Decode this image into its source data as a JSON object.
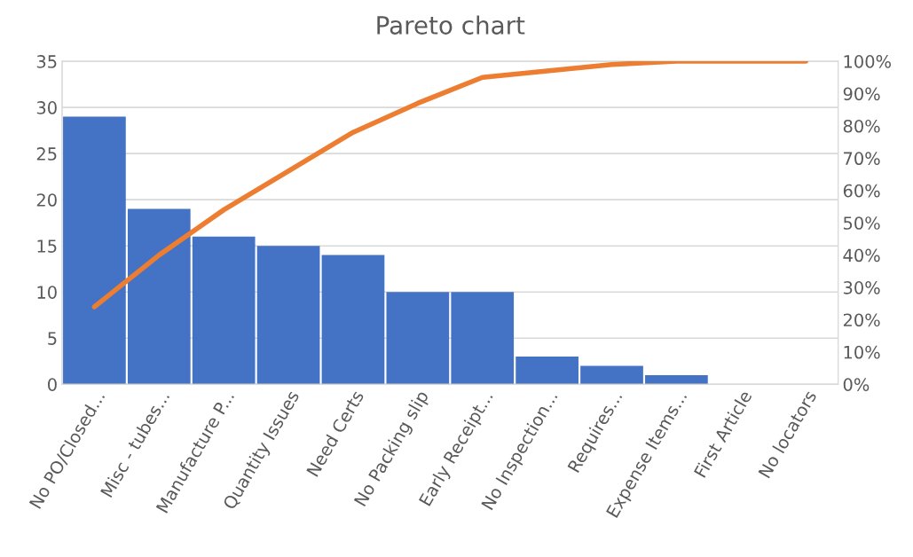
{
  "chart_data": {
    "type": "bar",
    "title": "Pareto chart",
    "categories": [
      "No PO/Closed...",
      "Misc - tubes...",
      "Manufacture P...",
      "Quantity Issues",
      "Need Certs",
      "No Packing slip",
      "Early Receipt...",
      "No Inspection...",
      "Requires...",
      "Expense Items...",
      "First Article",
      "No locators"
    ],
    "series": [
      {
        "color": "#4472c4",
        "values": [
          29,
          19,
          16,
          15,
          14,
          10,
          10,
          3,
          2,
          1,
          0,
          0
        ]
      },
      {
        "type": "line",
        "axis": "y2",
        "color": "#ed7d31",
        "values": [
          24,
          40,
          54,
          66,
          78,
          87,
          95,
          97,
          99,
          100,
          100,
          100
        ]
      }
    ],
    "ylim": [
      0,
      35
    ],
    "yticks": [
      0,
      5,
      10,
      15,
      20,
      25,
      30,
      35
    ],
    "y2lim": [
      0,
      100
    ],
    "y2ticks": [
      {
        "value": 0,
        "label": "0%"
      },
      {
        "value": 10,
        "label": "10%"
      },
      {
        "value": 20,
        "label": "20%"
      },
      {
        "value": 30,
        "label": "30%"
      },
      {
        "value": 40,
        "label": "40%"
      },
      {
        "value": 50,
        "label": "50%"
      },
      {
        "value": 60,
        "label": "60%"
      },
      {
        "value": 70,
        "label": "70%"
      },
      {
        "value": 80,
        "label": "80%"
      },
      {
        "value": 90,
        "label": "90%"
      },
      {
        "value": 100,
        "label": "100%"
      }
    ],
    "grid": "y",
    "legend": false
  }
}
